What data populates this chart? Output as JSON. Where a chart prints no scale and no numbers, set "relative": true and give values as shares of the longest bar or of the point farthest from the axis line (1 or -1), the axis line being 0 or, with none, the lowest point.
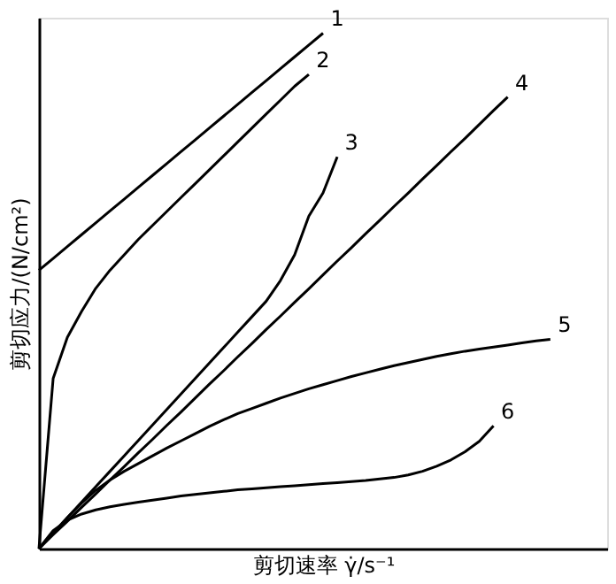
{
  "chart_data": {
    "type": "line",
    "relative": true,
    "xlabel": "剪切速率 γ̇/s⁻¹",
    "ylabel": "剪切应力/(N/cm²)",
    "legend": false,
    "tick_labels": false,
    "marker": "none",
    "line_style": "solid",
    "categories": [
      null,
      null,
      null,
      null,
      null,
      null,
      null,
      null,
      null,
      null,
      null,
      null,
      null,
      null,
      null,
      null,
      null,
      null,
      null,
      null,
      null,
      null,
      null,
      null,
      null,
      null,
      null,
      null,
      null,
      null,
      null,
      null,
      null,
      null,
      null,
      null,
      null,
      null,
      null,
      null,
      null
    ],
    "series": [
      {
        "name": "1",
        "color": "#000000",
        "values": [
          0.54,
          0.563,
          0.586,
          0.609,
          0.632,
          0.655,
          0.678,
          0.701,
          0.724,
          0.747,
          0.77,
          0.793,
          0.816,
          0.839,
          0.862,
          0.885,
          0.908,
          0.931,
          0.954,
          0.977,
          1.0,
          null,
          null,
          null,
          null,
          null,
          null,
          null,
          null,
          null,
          null,
          null,
          null,
          null,
          null,
          null,
          null,
          null,
          null,
          null,
          null
        ]
      },
      {
        "name": "2",
        "color": "#000000",
        "values": [
          0,
          0.33,
          0.41,
          0.46,
          0.505,
          0.54,
          0.57,
          0.6,
          0.627,
          0.654,
          0.681,
          0.708,
          0.735,
          0.762,
          0.789,
          0.816,
          0.843,
          0.87,
          0.897,
          0.92,
          null,
          null,
          null,
          null,
          null,
          null,
          null,
          null,
          null,
          null,
          null,
          null,
          null,
          null,
          null,
          null,
          null,
          null,
          null,
          null,
          null
        ]
      },
      {
        "name": "3",
        "color": "#000000",
        "values": [
          0,
          0.03,
          0.06,
          0.09,
          0.12,
          0.15,
          0.18,
          0.21,
          0.24,
          0.27,
          0.3,
          0.33,
          0.36,
          0.39,
          0.42,
          0.45,
          0.48,
          0.52,
          0.57,
          0.645,
          0.69,
          0.76,
          null,
          null,
          null,
          null,
          null,
          null,
          null,
          null,
          null,
          null,
          null,
          null,
          null,
          null,
          null,
          null,
          null,
          null,
          null
        ]
      },
      {
        "name": "4",
        "color": "#000000",
        "values": [
          0,
          0.027,
          0.053,
          0.08,
          0.106,
          0.133,
          0.159,
          0.186,
          0.212,
          0.239,
          0.265,
          0.292,
          0.319,
          0.345,
          0.372,
          0.398,
          0.425,
          0.451,
          0.478,
          0.504,
          0.531,
          0.558,
          0.584,
          0.611,
          0.637,
          0.664,
          0.69,
          0.717,
          0.743,
          0.77,
          0.796,
          0.823,
          0.85,
          0.876,
          null,
          null,
          null,
          null,
          null,
          null,
          null
        ]
      },
      {
        "name": "5",
        "color": "#000000",
        "values": [
          0,
          0.03,
          0.06,
          0.088,
          0.113,
          0.133,
          0.15,
          0.165,
          0.18,
          0.195,
          0.209,
          0.223,
          0.237,
          0.25,
          0.262,
          0.272,
          0.282,
          0.292,
          0.301,
          0.31,
          0.318,
          0.326,
          0.334,
          0.341,
          0.348,
          0.355,
          0.361,
          0.367,
          0.373,
          0.378,
          0.383,
          0.387,
          0.391,
          0.395,
          0.399,
          0.403,
          0.406,
          null,
          null,
          null,
          null
        ]
      },
      {
        "name": "6",
        "color": "#000000",
        "values": [
          0,
          0.035,
          0.055,
          0.067,
          0.075,
          0.081,
          0.086,
          0.09,
          0.094,
          0.098,
          0.102,
          0.105,
          0.108,
          0.111,
          0.114,
          0.116,
          0.118,
          0.12,
          0.122,
          0.124,
          0.126,
          0.128,
          0.13,
          0.132,
          0.135,
          0.138,
          0.143,
          0.15,
          0.16,
          0.172,
          0.188,
          0.208,
          0.238,
          null,
          null,
          null,
          null,
          null,
          null,
          null,
          null
        ]
      }
    ]
  }
}
